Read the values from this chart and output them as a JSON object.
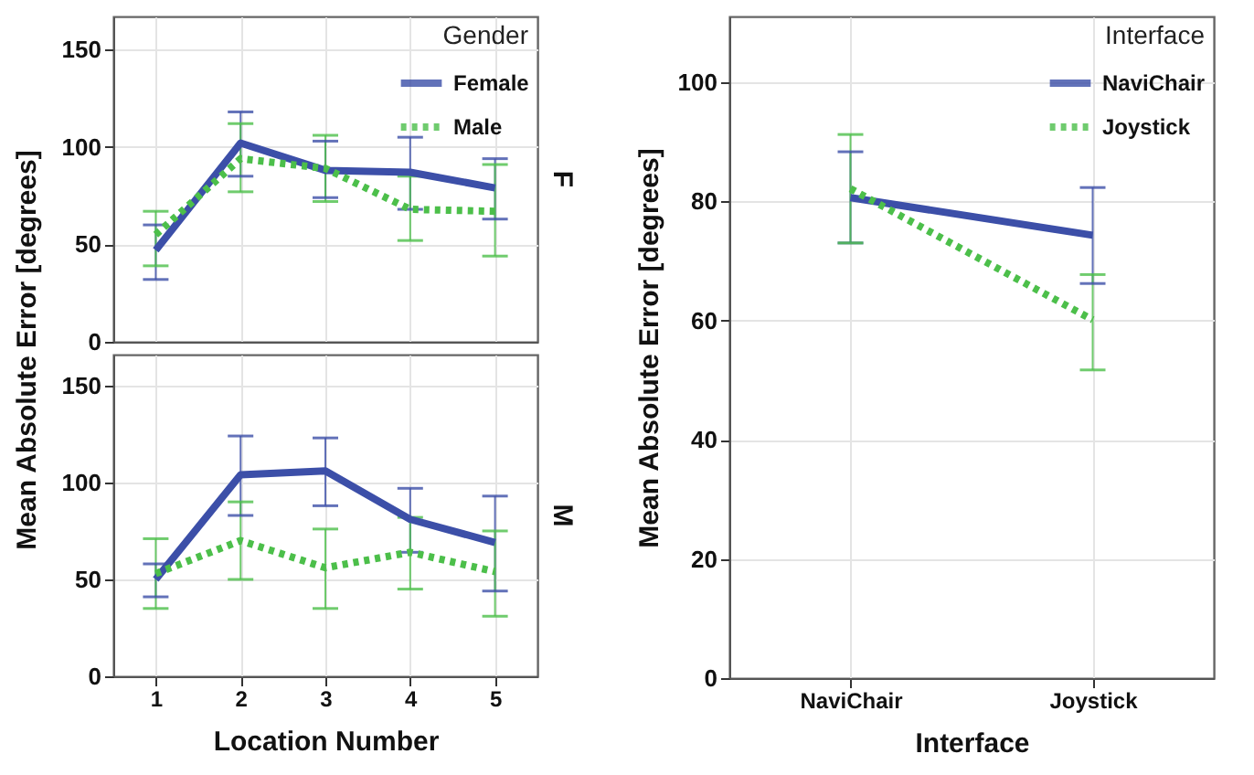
{
  "chart_data": [
    {
      "type": "line",
      "categories": [
        "1",
        "2",
        "3",
        "4",
        "5"
      ],
      "ylabel": "Mean Absolute Error [degrees]",
      "legend_title": "Gender",
      "annotations": [
        "F"
      ],
      "ylim": [
        0,
        167
      ],
      "yticks": [
        0,
        50,
        100,
        150
      ],
      "grid": true,
      "legend": "top right",
      "tick_labels": "y",
      "series": [
        {
          "name": "Female",
          "color": "#3c4fa8",
          "line_style": "solid",
          "values": [
            47,
            102,
            88,
            87,
            79
          ],
          "errors": [
            [
              32,
              60
            ],
            [
              85,
              118
            ],
            [
              74,
              103
            ],
            [
              68,
              105
            ],
            [
              63,
              94
            ]
          ]
        },
        {
          "name": "Male",
          "color": "#4cbf4a",
          "line_style": "dotted",
          "values": [
            55,
            94,
            89,
            68,
            67
          ],
          "errors": [
            [
              39,
              67
            ],
            [
              77,
              112
            ],
            [
              72,
              106
            ],
            [
              52,
              85
            ],
            [
              44,
              91
            ]
          ]
        }
      ]
    },
    {
      "type": "line",
      "categories": [
        "1",
        "2",
        "3",
        "4",
        "5"
      ],
      "xlabel": "Location Number",
      "annotations": [
        "M"
      ],
      "ylim": [
        0,
        166
      ],
      "yticks": [
        0,
        50,
        100,
        150
      ],
      "grid": true,
      "series": [
        {
          "color": "#3c4fa8",
          "line_style": "solid",
          "values": [
            50,
            104,
            106,
            81,
            69
          ],
          "errors": [
            [
              41,
              58
            ],
            [
              83,
              124
            ],
            [
              88,
              123
            ],
            [
              64,
              97
            ],
            [
              44,
              93
            ]
          ]
        },
        {
          "color": "#4cbf4a",
          "line_style": "dotted",
          "values": [
            53,
            70,
            56,
            64,
            54
          ],
          "errors": [
            [
              35,
              71
            ],
            [
              50,
              90
            ],
            [
              35,
              76
            ],
            [
              45,
              82
            ],
            [
              31,
              75
            ]
          ]
        }
      ]
    },
    {
      "type": "line",
      "categories": [
        "NaviChair",
        "Joystick"
      ],
      "xlabel": "Interface",
      "ylabel": "Mean Absolute Error [degrees]",
      "legend_title": "Interface",
      "ylim": [
        0,
        111
      ],
      "yticks": [
        0,
        20,
        40,
        60,
        80,
        100
      ],
      "grid": true,
      "legend": "top right",
      "series": [
        {
          "name": "NaviChair",
          "color": "#3c4fa8",
          "line_style": "solid",
          "values": [
            80.6,
            74.3
          ],
          "errors": [
            [
              73,
              88.3
            ],
            [
              66.2,
              82.3
            ]
          ]
        },
        {
          "name": "Joystick",
          "color": "#4cbf4a",
          "line_style": "dotted",
          "values": [
            82.1,
            60.1
          ],
          "errors": [
            [
              73,
              91.2
            ],
            [
              51.7,
              67.7
            ]
          ]
        }
      ]
    }
  ]
}
